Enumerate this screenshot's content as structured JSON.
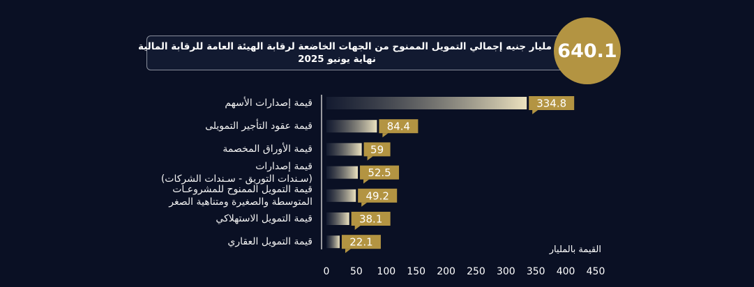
{
  "chart_data": {
    "type": "bar",
    "orientation": "horizontal",
    "total": 640.1,
    "title": "مليار جنيه إجمالي التمويل الممنوح من الجهات الخاضعة لرقابة الهيئة العامة للرقابة المالية",
    "subtitle": "نهاية يونيو 2025",
    "x_label": "القيمة بالمليار",
    "categories": [
      "قيمة إصدارات الأسهم",
      "قيمة عقود التأجير التمويلى",
      "قيمة الأوراق المخصمة",
      "قيمة إصدارات\n(سـندات التوريق - سـندات الشركات)",
      "قيمة التمويل الممنوح للمشروعـات\nالمتوسطة والصغيرة ومتناهية الصغر",
      "قيمة التمويل الاستهلاكي",
      "قيمة التمويل العقاري"
    ],
    "values": [
      334.8,
      84.4,
      59,
      52.5,
      49.2,
      38.1,
      22.1
    ],
    "color": "#b39442",
    "xlim": [
      0,
      450
    ],
    "xticks": [
      0,
      50,
      100,
      150,
      200,
      250,
      300,
      350,
      400,
      450
    ],
    "grid": false
  }
}
